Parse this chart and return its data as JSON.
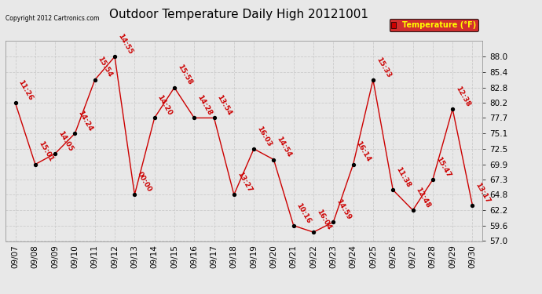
{
  "title": "Outdoor Temperature Daily High 20121001",
  "copyright": "Copyright 2012 Cartronics.com",
  "legend_label": "Temperature (°F)",
  "dates": [
    "09/07",
    "09/08",
    "09/09",
    "09/10",
    "09/11",
    "09/12",
    "09/13",
    "09/14",
    "09/15",
    "09/16",
    "09/17",
    "09/18",
    "09/19",
    "09/20",
    "09/21",
    "09/22",
    "09/23",
    "09/24",
    "09/25",
    "09/26",
    "09/27",
    "09/28",
    "09/29",
    "09/30"
  ],
  "temperatures": [
    80.2,
    69.9,
    71.7,
    75.1,
    84.1,
    88.0,
    64.8,
    77.7,
    82.8,
    77.7,
    77.7,
    64.8,
    72.5,
    70.7,
    59.6,
    58.5,
    60.2,
    69.9,
    84.1,
    65.6,
    62.2,
    67.3,
    79.2,
    63.0
  ],
  "time_labels": [
    "11:26",
    "15:01",
    "14:05",
    "14:24",
    "15:54",
    "14:55",
    "00:00",
    "14:20",
    "15:58",
    "14:28",
    "13:54",
    "13:27",
    "16:03",
    "14:54",
    "10:16",
    "16:04",
    "14:59",
    "16:14",
    "15:33",
    "11:38",
    "12:48",
    "15:47",
    "12:38",
    "13:17"
  ],
  "line_color": "#cc0000",
  "marker_color": "#000000",
  "label_color": "#cc0000",
  "background_color": "#e8e8e8",
  "grid_color": "#cccccc",
  "ylim": [
    57.0,
    90.6
  ],
  "yticks": [
    57.0,
    59.6,
    62.2,
    64.8,
    67.3,
    69.9,
    72.5,
    75.1,
    77.7,
    80.2,
    82.8,
    85.4,
    88.0
  ],
  "title_fontsize": 11,
  "label_fontsize": 6.5,
  "tick_fontsize": 7.5,
  "legend_bg": "#cc0000",
  "legend_fg": "#ffff00"
}
